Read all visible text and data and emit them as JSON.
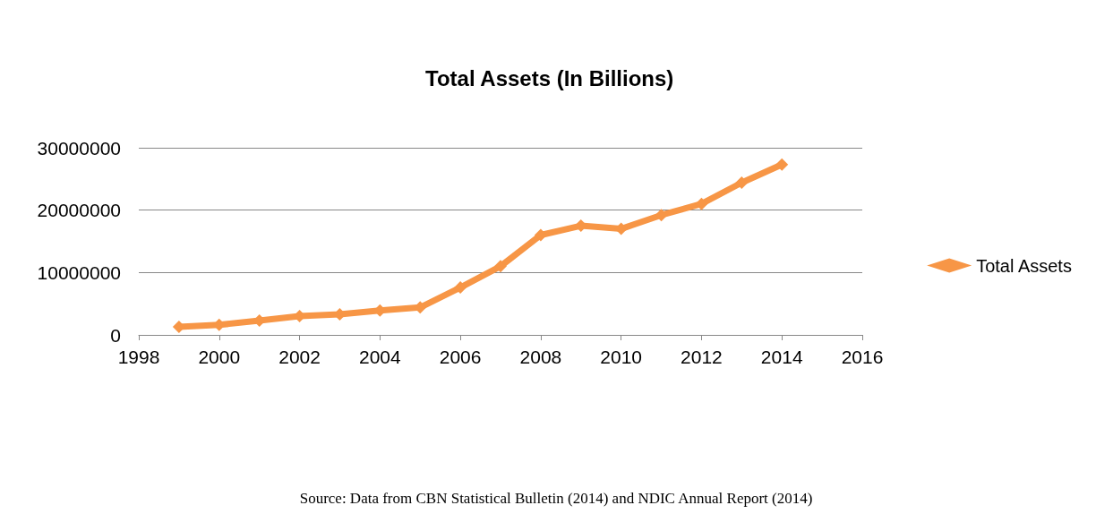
{
  "chart_data": {
    "type": "line",
    "title": "Total Assets (In Billions)",
    "x": [
      1999,
      2000,
      2001,
      2002,
      2003,
      2004,
      2005,
      2006,
      2007,
      2008,
      2009,
      2010,
      2011,
      2012,
      2013,
      2014
    ],
    "series": [
      {
        "name": "Total Assets",
        "color": "#f79646",
        "values": [
          1300000,
          1600000,
          2300000,
          3000000,
          3300000,
          3900000,
          4400000,
          7600000,
          11000000,
          16000000,
          17500000,
          17000000,
          19200000,
          21000000,
          24400000,
          27300000
        ]
      }
    ],
    "xlim": [
      1998,
      2016
    ],
    "xticks": [
      1998,
      2000,
      2002,
      2004,
      2006,
      2008,
      2010,
      2012,
      2014,
      2016
    ],
    "ylim": [
      0,
      30000000
    ],
    "yticks": [
      0,
      10000000,
      20000000,
      30000000
    ],
    "grid": "y",
    "legend": "right",
    "marker": "diamond",
    "line_style": "solid",
    "annotations": [
      "Source: Data from CBN Statistical Bulletin (2014) and NDIC Annual Report (2014)"
    ]
  }
}
